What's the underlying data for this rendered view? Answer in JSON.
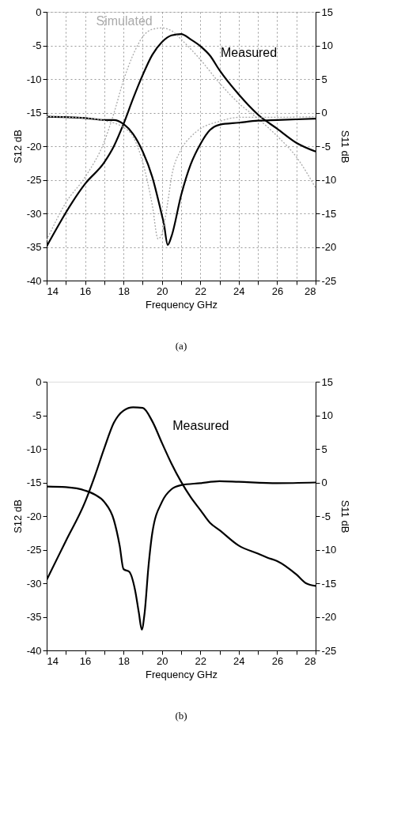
{
  "chart_data": [
    {
      "type": "line",
      "xlabel": "Frequency GHz",
      "ylabel": "S12 dB",
      "y2label": "S11 dB",
      "xlim": [
        14,
        28
      ],
      "xticks": [
        14,
        {
          "value": 15,
          "label": null
        },
        16,
        {
          "value": 17,
          "label": null
        },
        18,
        {
          "value": 19,
          "label": null
        },
        20,
        {
          "value": 21,
          "label": null
        },
        22,
        {
          "value": 23,
          "label": null
        },
        24,
        {
          "value": 25,
          "label": null
        },
        26,
        {
          "value": 27,
          "label": null
        },
        28
      ],
      "ylim": [
        -40,
        0
      ],
      "yticks": [
        -40,
        -35,
        -30,
        -25,
        -20,
        -15,
        -10,
        -5,
        0
      ],
      "y2lim": [
        -25,
        15
      ],
      "y2ticks": [
        -25,
        -20,
        -15,
        -10,
        -5,
        0,
        5,
        10,
        15
      ],
      "grid": true,
      "series": [
        {
          "name": "Measured",
          "color": "#000000",
          "line_style": "solid",
          "x": [
            14,
            16,
            17,
            17.5,
            18,
            18.5,
            19,
            19.5,
            20,
            20.5,
            21,
            21.5,
            22,
            22.5,
            23,
            24,
            25,
            26,
            27,
            28
          ],
          "values": [
            -34.9,
            -25.6,
            -22.4,
            -20,
            -16.7,
            -12.9,
            -9.4,
            -6.4,
            -4.5,
            -3.5,
            -3.3,
            -4.1,
            -5.1,
            -6.5,
            -8.7,
            -12.3,
            -15.3,
            -17.4,
            -19.5,
            -20.8
          ]
        },
        {
          "name": "Simulated",
          "color": "#aaaaaa",
          "line_style": "dotted",
          "x": [
            14,
            15,
            16,
            17,
            17.5,
            18,
            18.5,
            19,
            19.5,
            20,
            20.5,
            21,
            22,
            23,
            24,
            25,
            26,
            27,
            28
          ],
          "values": [
            -34,
            -28.4,
            -24.6,
            -19.3,
            -15.1,
            -10.2,
            -6.4,
            -3.7,
            -2.6,
            -2.4,
            -2.8,
            -4.1,
            -7.1,
            -10.6,
            -13.6,
            -15.9,
            -18.5,
            -21.6,
            -26.2
          ]
        },
        {
          "color": "#000000",
          "line_style": "solid",
          "axis": "y2",
          "x": [
            14,
            16,
            17,
            17.5,
            18,
            18.5,
            19,
            19.5,
            20,
            20.1,
            20.3,
            20.5,
            21,
            21.5,
            22,
            22.5,
            23,
            24,
            25,
            26,
            28
          ],
          "values": [
            -0.6,
            -0.8,
            -1.1,
            -1.1,
            -1.7,
            -3.2,
            -5.8,
            -9.6,
            -15.3,
            -16.5,
            -19.7,
            -18.4,
            -12.3,
            -7.7,
            -4.7,
            -2.6,
            -1.8,
            -1.5,
            -1.2,
            -1.1,
            -0.9
          ]
        },
        {
          "color": "#aaaaaa",
          "line_style": "dotted",
          "axis": "y2",
          "x": [
            14,
            16,
            17,
            18,
            18.5,
            19,
            19.5,
            19.8,
            20,
            20.3,
            20.5,
            21,
            21.5,
            22,
            23,
            24,
            25,
            26,
            28
          ],
          "values": [
            -0.6,
            -0.8,
            -1.2,
            -2.2,
            -3.6,
            -7.4,
            -13.8,
            -18.8,
            -18,
            -13.4,
            -9.6,
            -5.5,
            -3.6,
            -2.4,
            -1.3,
            -0.7,
            -0.7,
            -0.7,
            -0.6
          ]
        }
      ],
      "annotations": [
        "(a)"
      ]
    },
    {
      "type": "line",
      "xlabel": "Frequency GHz",
      "ylabel": "S12 dB",
      "y2label": "S11 dB",
      "xlim": [
        14,
        28
      ],
      "xticks": [
        14,
        {
          "value": 15,
          "label": null
        },
        16,
        {
          "value": 17,
          "label": null
        },
        18,
        {
          "value": 19,
          "label": null
        },
        20,
        {
          "value": 21,
          "label": null
        },
        22,
        {
          "value": 23,
          "label": null
        },
        24,
        {
          "value": 25,
          "label": null
        },
        26,
        {
          "value": 27,
          "label": null
        },
        28
      ],
      "ylim": [
        -40,
        0
      ],
      "yticks": [
        -40,
        -35,
        -30,
        -25,
        -20,
        -15,
        -10,
        -5,
        0
      ],
      "y2lim": [
        -25,
        15
      ],
      "y2ticks": [
        -25,
        -20,
        -15,
        -10,
        -5,
        0,
        5,
        10,
        15
      ],
      "series": [
        {
          "name": "Measured",
          "color": "#000000",
          "line_style": "solid",
          "x": [
            14,
            15,
            16,
            16.5,
            17,
            17.5,
            18,
            18.5,
            19,
            19.5,
            20,
            20.5,
            21,
            21.5,
            22,
            22.5,
            23,
            24,
            25,
            25.5,
            26,
            27,
            27.5,
            28
          ],
          "values": [
            -29.5,
            -23.7,
            -17.9,
            -14.1,
            -9.9,
            -6.1,
            -4.3,
            -3.8,
            -3.9,
            -5.9,
            -9.1,
            -12.2,
            -14.9,
            -17.2,
            -19.1,
            -21,
            -22.1,
            -24.4,
            -25.6,
            -26.2,
            -26.7,
            -28.7,
            -30,
            -30.4
          ]
        },
        {
          "color": "#000000",
          "line_style": "solid",
          "axis": "y2",
          "x": [
            14,
            15,
            16,
            16.5,
            17,
            17.5,
            17.8,
            18,
            18.3,
            18.6,
            18.8,
            18.95,
            19.1,
            19.3,
            19.5,
            20,
            20.5,
            21,
            22,
            23,
            24,
            26,
            28
          ],
          "values": [
            -0.6,
            -0.7,
            -1.2,
            -1.8,
            -2.9,
            -5.6,
            -9.4,
            -12.9,
            -13.3,
            -16,
            -19.4,
            -21.9,
            -19.4,
            -12.5,
            -7.5,
            -2.9,
            -1,
            -0.4,
            -0.1,
            0.2,
            0.1,
            -0.1,
            0
          ]
        }
      ],
      "annotations": [
        "(b)"
      ]
    }
  ]
}
